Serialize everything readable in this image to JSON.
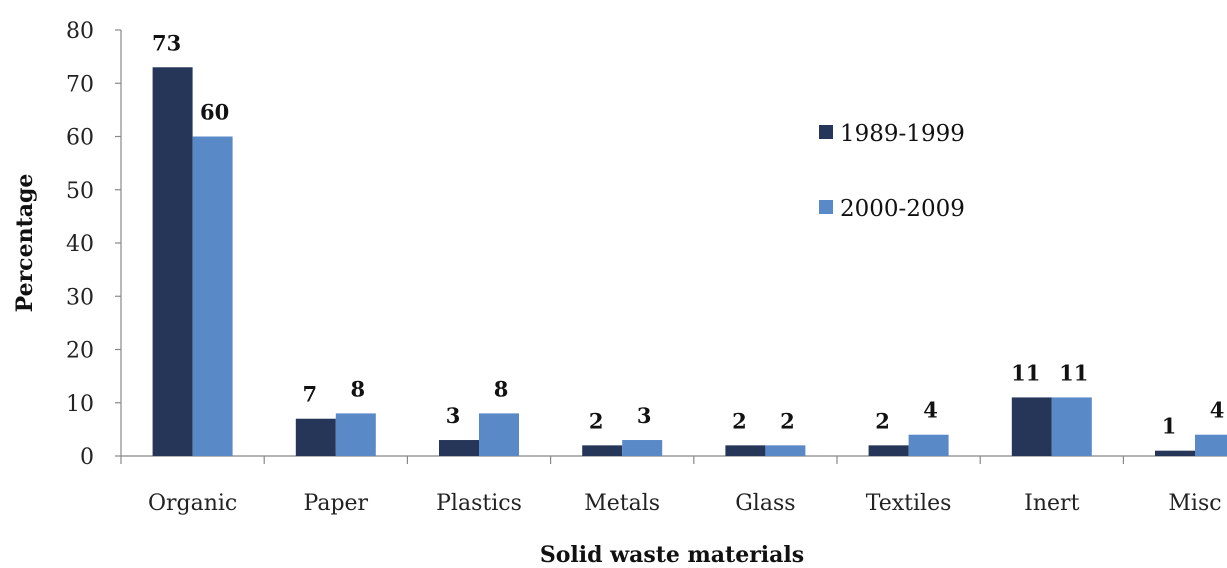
{
  "chart_data": {
    "type": "bar",
    "xlabel": "Solid waste materials",
    "ylabel": "Percentage",
    "ylim": [
      0,
      80
    ],
    "ytick_step": 10,
    "yticks": [
      "0",
      "10",
      "20",
      "30",
      "40",
      "50",
      "60",
      "70",
      "80"
    ],
    "grid": false,
    "legend_position": "right",
    "categories": [
      "Organic",
      "Paper",
      "Plastics",
      "Metals",
      "Glass",
      "Textiles",
      "Inert",
      "Misc"
    ],
    "series": [
      {
        "name": "1989-1999",
        "color": "#253659",
        "values": [
          73,
          7,
          3,
          2,
          2,
          2,
          11,
          1
        ]
      },
      {
        "name": "2000-2009",
        "color": "#5a89c8",
        "values": [
          60,
          8,
          8,
          3,
          2,
          4,
          11,
          4
        ]
      }
    ]
  }
}
